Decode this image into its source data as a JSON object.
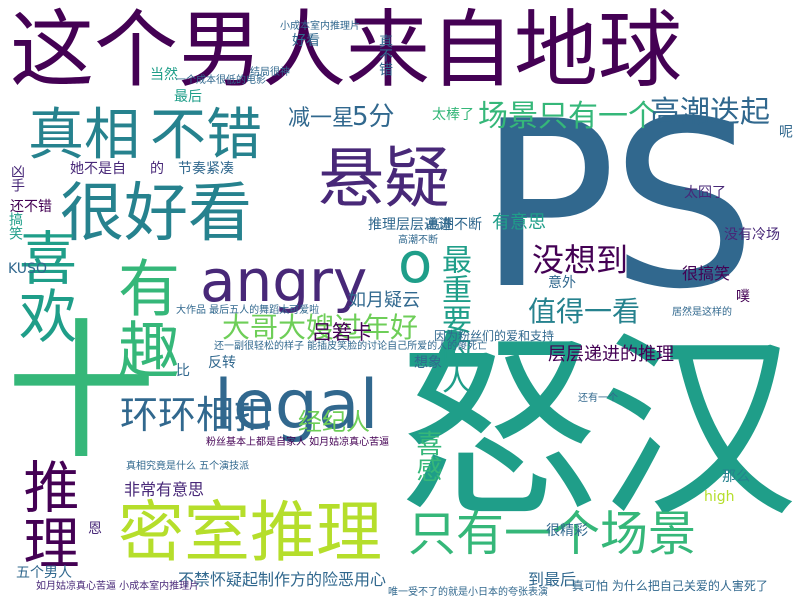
{
  "title": "",
  "palette": {
    "purple": "#440154",
    "indigo": "#482878",
    "blue": "#31688e",
    "teal": "#26828e",
    "green": "#1f9e89",
    "mint": "#35b779",
    "lime": "#6ece58",
    "yellow": "#b5de2b"
  },
  "words": [
    {
      "text": "这个男人来自地球"
    },
    {
      "text": "PS"
    },
    {
      "text": "怒汉"
    },
    {
      "text": "十"
    },
    {
      "text": "悬疑"
    },
    {
      "text": "很好看"
    },
    {
      "text": "angry"
    },
    {
      "text": "legal"
    },
    {
      "text": "密室推理"
    },
    {
      "text": "有趣"
    },
    {
      "text": "喜欢"
    },
    {
      "text": "推理"
    },
    {
      "text": "真相"
    },
    {
      "text": "不错"
    },
    {
      "text": "只有一个场景"
    },
    {
      "text": "环环相扣"
    },
    {
      "text": "大哥大嫂过年好"
    },
    {
      "text": "值得一看"
    },
    {
      "text": "没想到"
    },
    {
      "text": "场景只有一个"
    },
    {
      "text": "高潮迭起"
    },
    {
      "text": "最重要的人"
    },
    {
      "text": "o"
    },
    {
      "text": "减一星"
    },
    {
      "text": "5分"
    },
    {
      "text": "吕箬卡"
    },
    {
      "text": "经纪人"
    },
    {
      "text": "喜感"
    },
    {
      "text": "如月疑云"
    },
    {
      "text": "有意思"
    },
    {
      "text": "层层递进的推理"
    },
    {
      "text": "很搞笑"
    },
    {
      "text": "没有冷场"
    },
    {
      "text": "太囧了"
    },
    {
      "text": "推理层层递进"
    },
    {
      "text": "高潮不断"
    },
    {
      "text": "非常有意思"
    },
    {
      "text": "不禁怀疑起制作方的险恶用心"
    },
    {
      "text": "五个男人"
    },
    {
      "text": "到最后"
    },
    {
      "text": "很精彩"
    },
    {
      "text": "还不错"
    },
    {
      "text": "KUSO"
    },
    {
      "text": "搞笑"
    },
    {
      "text": "凶手"
    },
    {
      "text": "她不是自"
    },
    {
      "text": "的"
    },
    {
      "text": "节奏紧凑"
    },
    {
      "text": "太棒了"
    },
    {
      "text": "好看"
    },
    {
      "text": "真不错"
    },
    {
      "text": "当然"
    },
    {
      "text": "最后"
    },
    {
      "text": "反转"
    },
    {
      "text": "比"
    },
    {
      "text": "想象"
    },
    {
      "text": "意外"
    },
    {
      "text": "噗"
    },
    {
      "text": "那么"
    },
    {
      "text": "high"
    },
    {
      "text": "恩"
    },
    {
      "text": "呢"
    },
    {
      "text": "真可怕 为什么把自己关爱的人害死了"
    },
    {
      "text": "因为粉丝们的爱和支持"
    },
    {
      "text": "粉丝基本上都是自家人 如月姑凉真心苦逼"
    },
    {
      "text": "真相究竟是什么 五个演技派"
    },
    {
      "text": "大作品 最后五人的舞蹈太可爱啦"
    },
    {
      "text": "还一副很轻松的样子 能插皮笑脸的讨论自己所爱的人的傻死亡"
    },
    {
      "text": "小成本室内推理片"
    },
    {
      "text": "如月姑凉真心苦逼 小成本室内推理片"
    },
    {
      "text": "唯一受不了的就是小日本的夸张表演"
    },
    {
      "text": "居然是这样的"
    },
    {
      "text": "一个成本很低的电影"
    },
    {
      "text": "结局很神"
    },
    {
      "text": "高潮不断"
    },
    {
      "text": "还有一个"
    }
  ]
}
